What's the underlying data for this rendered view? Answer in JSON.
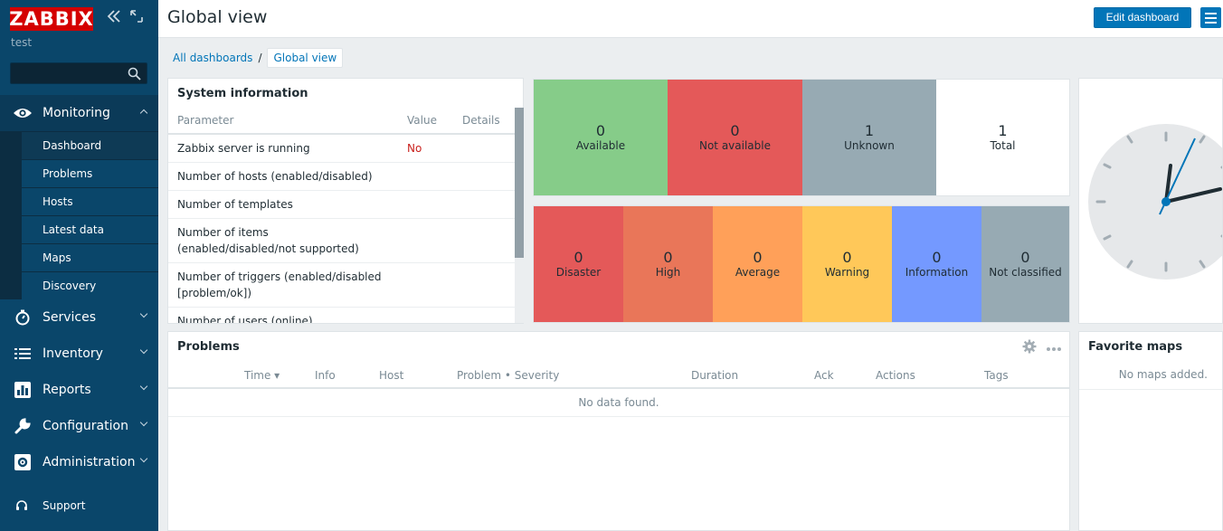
{
  "sidebar": {
    "logo": "ZABBIX",
    "server_name": "test",
    "search_placeholder": "",
    "monitoring": {
      "label": "Monitoring",
      "items": [
        "Dashboard",
        "Problems",
        "Hosts",
        "Latest data",
        "Maps",
        "Discovery"
      ],
      "active": "Dashboard"
    },
    "sections": [
      {
        "label": "Services",
        "icon": "stopwatch-icon"
      },
      {
        "label": "Inventory",
        "icon": "list-icon"
      },
      {
        "label": "Reports",
        "icon": "bar-chart-icon"
      },
      {
        "label": "Configuration",
        "icon": "wrench-icon"
      },
      {
        "label": "Administration",
        "icon": "cog-icon"
      }
    ],
    "support": "Support"
  },
  "header": {
    "title": "Global view",
    "edit_button": "Edit dashboard"
  },
  "breadcrumb": {
    "all": "All dashboards",
    "separator": "/",
    "current": "Global view"
  },
  "system_info": {
    "title": "System information",
    "columns": [
      "Parameter",
      "Value",
      "Details"
    ],
    "rows": [
      {
        "param": "Zabbix server is running",
        "value": "No"
      },
      {
        "param": "Number of hosts (enabled/disabled)",
        "value": ""
      },
      {
        "param": "Number of templates",
        "value": ""
      },
      {
        "param": "Number of items (enabled/disabled/not supported)",
        "value": ""
      },
      {
        "param": "Number of triggers (enabled/disabled [problem/ok])",
        "value": ""
      },
      {
        "param": "Number of users (online)",
        "value": ""
      }
    ]
  },
  "host_availability": [
    {
      "count": "0",
      "label": "Available",
      "color": "#86cc89"
    },
    {
      "count": "0",
      "label": "Not available",
      "color": "#e45959"
    },
    {
      "count": "1",
      "label": "Unknown",
      "color": "#97aab3"
    },
    {
      "count": "1",
      "label": "Total",
      "color": "#ffffff"
    }
  ],
  "problems_by_severity": [
    {
      "count": "0",
      "label": "Disaster",
      "color": "#e45959"
    },
    {
      "count": "0",
      "label": "High",
      "color": "#e97659"
    },
    {
      "count": "0",
      "label": "Average",
      "color": "#ffa059"
    },
    {
      "count": "0",
      "label": "Warning",
      "color": "#ffc859"
    },
    {
      "count": "0",
      "label": "Information",
      "color": "#7499ff"
    },
    {
      "count": "0",
      "label": "Not classified",
      "color": "#97aab3"
    }
  ],
  "problems": {
    "title": "Problems",
    "columns": [
      "Time ▾",
      "Info",
      "Host",
      "Problem • Severity",
      "Duration",
      "Ack",
      "Actions",
      "Tags"
    ],
    "empty": "No data found."
  },
  "favorite_maps": {
    "title": "Favorite maps",
    "empty": "No maps added."
  }
}
